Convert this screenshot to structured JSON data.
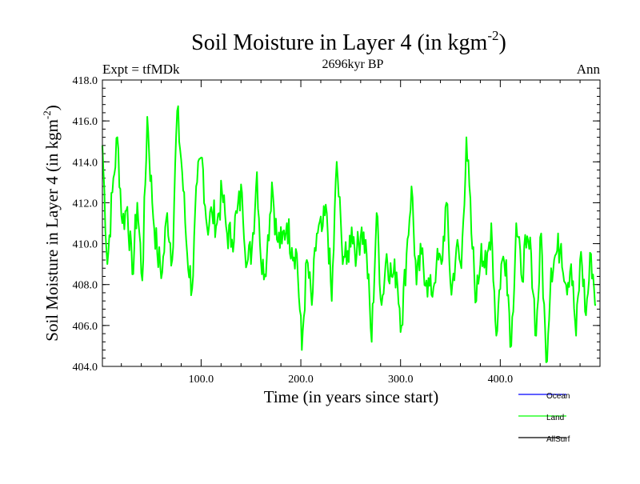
{
  "colors": {
    "ocean": "#0000ff",
    "land": "#00ff00",
    "allsurf": "#000000",
    "axis": "#000000",
    "background": "#ffffff"
  },
  "header": {
    "title_main": "Soil Moisture in Layer 4 (in kgm",
    "title_sup": "-2",
    "title_close": ")",
    "expt": "Expt = tfMDk",
    "period": "2696kyr BP",
    "season": "Ann"
  },
  "chart_data": {
    "type": "line",
    "title": "Soil Moisture in Layer 4 (in kgm-2)",
    "subtitle": "2696kyr BP",
    "xlabel": "Time (in years since start)",
    "ylabel": "Soil Moisture in Layer 4 (in kgm-2)",
    "ylabel_main": "Soil Moisture in Layer 4 (in kgm",
    "ylabel_sup": "-2",
    "ylabel_close": ")",
    "xlim": [
      1,
      500
    ],
    "ylim": [
      404.0,
      418.0
    ],
    "xticks": [
      100,
      200,
      300,
      400
    ],
    "xtick_labels": [
      "100.0",
      "200.0",
      "300.0",
      "400.0"
    ],
    "yticks": [
      404,
      406,
      408,
      410,
      412,
      414,
      416,
      418
    ],
    "ytick_labels": [
      "404.0",
      "406.0",
      "408.0",
      "410.0",
      "412.0",
      "414.0",
      "416.0",
      "418.0"
    ],
    "legend": [
      {
        "name": "Ocean",
        "color": "#0000ff"
      },
      {
        "name": "Land",
        "color": "#00ff00"
      },
      {
        "name": "AllSurf",
        "color": "#000000"
      }
    ],
    "series": [
      {
        "name": "Land",
        "x_start": 1,
        "x_step": 5,
        "values": [
          414.8,
          409.0,
          412.5,
          415.2,
          411.0,
          411.8,
          408.5,
          412.0,
          408.2,
          416.2,
          412.0,
          409.5,
          408.6,
          411.5,
          409.2,
          416.5,
          413.5,
          409.5,
          407.8,
          413.0,
          414.2,
          410.8,
          411.5,
          411.0,
          412.5,
          410.5,
          410.2,
          411.5,
          412.5,
          409.0,
          409.8,
          413.5,
          408.5,
          409.5,
          413.0,
          410.2,
          410.0,
          411.0,
          409.8,
          409.5,
          404.8,
          409.2,
          407.0,
          410.5,
          410.6,
          411.5,
          407.2,
          414.0,
          410.0,
          409.0,
          410.8,
          409.5,
          410.8,
          409.5,
          405.2,
          411.5,
          407.0,
          409.5,
          408.4,
          408.6,
          406.0,
          409.5,
          412.8,
          408.0,
          409.5,
          408.2,
          407.5,
          409.0,
          409.0,
          412.0,
          407.5,
          409.8,
          408.8,
          415.2,
          410.5,
          407.2,
          410.0,
          408.5,
          411.0,
          405.5,
          409.0,
          409.2,
          405.0,
          411.0,
          408.5,
          409.8,
          409.5,
          405.5,
          410.5,
          404.2,
          408.8,
          409.5,
          410.0,
          408.0,
          409.0,
          405.5,
          409.6,
          406.5,
          409.5,
          407.0
        ]
      }
    ]
  }
}
